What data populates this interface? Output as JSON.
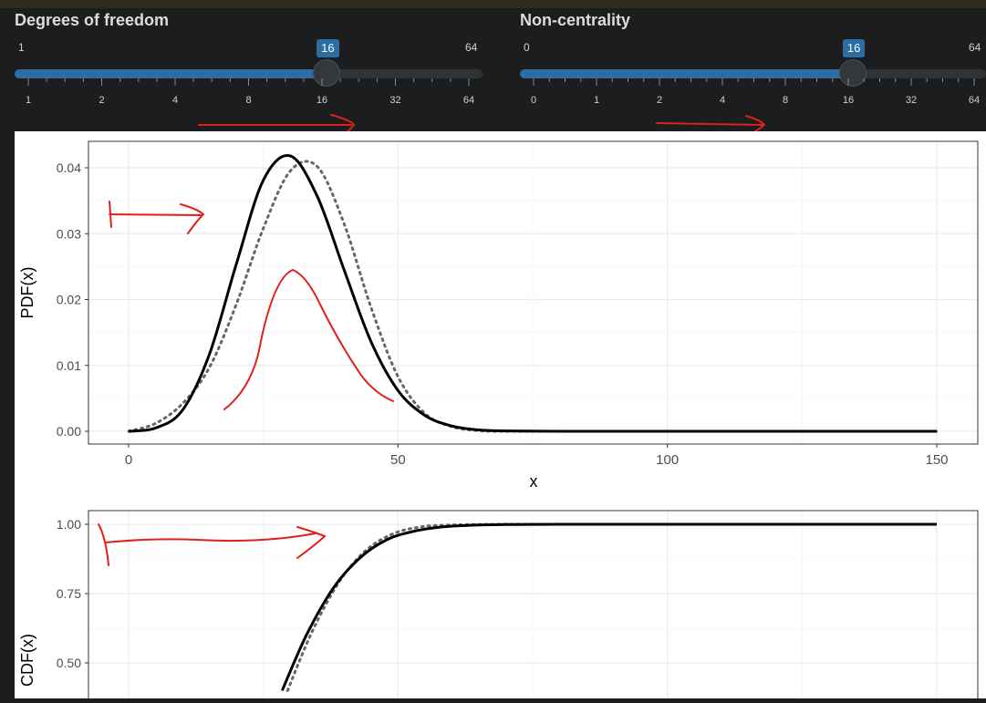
{
  "sliders": [
    {
      "label": "Degrees of freedom",
      "min_label": "1",
      "max_label": "64",
      "value_label": "16",
      "position_fraction": 0.667,
      "tick_labels": [
        "1",
        "2",
        "4",
        "8",
        "16",
        "32",
        "64"
      ],
      "fill_color": "#2e6da4"
    },
    {
      "label": "Non-centrality",
      "min_label": "0",
      "max_label": "64",
      "value_label": "16",
      "position_fraction": 0.714,
      "tick_labels": [
        "0",
        "1",
        "2",
        "4",
        "8",
        "16",
        "32",
        "64"
      ],
      "fill_color": "#2e6da4"
    }
  ],
  "chart_data": [
    {
      "type": "line",
      "ylabel": "PDF(x)",
      "xlabel": "x",
      "xlim": [
        0,
        150
      ],
      "ylim": [
        0,
        0.04
      ],
      "x_ticks": [
        "0",
        "50",
        "100",
        "150"
      ],
      "y_ticks": [
        "0.00",
        "0.01",
        "0.02",
        "0.03",
        "0.04"
      ],
      "grid": true,
      "series": [
        {
          "style": "solid",
          "color": "#000000",
          "x": [
            0,
            5,
            10,
            15,
            20,
            25,
            30,
            35,
            40,
            45,
            50,
            55,
            60,
            65,
            70,
            80,
            100,
            150
          ],
          "y": [
            0,
            0.0005,
            0.0032,
            0.0117,
            0.0254,
            0.0381,
            0.0418,
            0.0357,
            0.0245,
            0.0136,
            0.0062,
            0.0024,
            0.0008,
            0.0002,
            5e-05,
            0,
            0,
            0
          ]
        },
        {
          "style": "dotted",
          "color": "#666666",
          "x": [
            0,
            5,
            10,
            15,
            20,
            25,
            30,
            35,
            40,
            45,
            50,
            55,
            60,
            65,
            70,
            80,
            100,
            150
          ],
          "y": [
            0,
            0.0012,
            0.0042,
            0.0097,
            0.0193,
            0.0308,
            0.0395,
            0.0402,
            0.0315,
            0.0188,
            0.0083,
            0.0027,
            0.0007,
            0.0001,
            0,
            0,
            0,
            0
          ]
        }
      ]
    },
    {
      "type": "line",
      "ylabel": "CDF(x)",
      "xlim": [
        0,
        150
      ],
      "ylim": [
        0.4,
        1.0
      ],
      "y_ticks": [
        "0.50",
        "0.75",
        "1.00"
      ],
      "grid": true,
      "series": [
        {
          "style": "solid",
          "color": "#000000",
          "x": [
            28.5,
            33,
            38,
            43,
            48,
            53,
            58,
            63,
            70,
            80,
            100,
            150
          ],
          "y": [
            0.4,
            0.6,
            0.77,
            0.88,
            0.945,
            0.975,
            0.99,
            0.996,
            0.999,
            1.0,
            1.0,
            1.0
          ]
        },
        {
          "style": "dotted",
          "color": "#666666",
          "x": [
            29.5,
            34,
            39,
            44,
            49,
            54,
            59,
            64,
            70,
            80,
            100,
            150
          ],
          "y": [
            0.4,
            0.61,
            0.79,
            0.905,
            0.965,
            0.99,
            0.997,
            0.999,
            1.0,
            1.0,
            1.0,
            1.0
          ]
        }
      ]
    }
  ]
}
